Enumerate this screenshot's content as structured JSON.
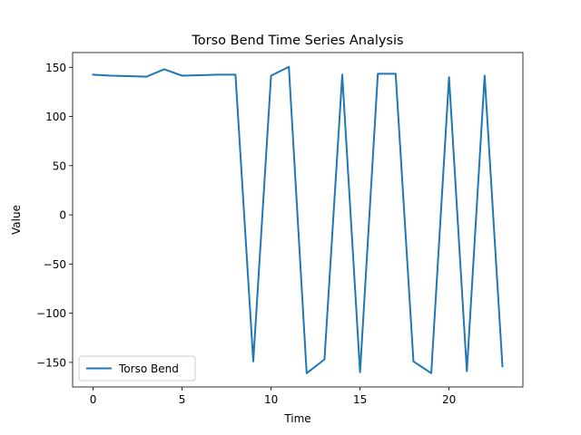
{
  "chart_data": {
    "type": "line",
    "title": "Torso Bend Time Series Analysis",
    "xlabel": "Time",
    "ylabel": "Value",
    "xlim": [
      -1.15,
      24.15
    ],
    "ylim": [
      -175,
      165
    ],
    "xticks": [
      0,
      5,
      10,
      15,
      20
    ],
    "yticks": [
      -150,
      -100,
      -50,
      0,
      50,
      100,
      150
    ],
    "ytick_labels": [
      "−150",
      "−100",
      "−50",
      "0",
      "50",
      "100",
      "150"
    ],
    "grid": false,
    "legend_position": "lower-left",
    "series": [
      {
        "name": "Torso Bend",
        "color": "#1f77b4",
        "x": [
          0,
          1,
          2,
          3,
          4,
          5,
          6,
          7,
          8,
          9,
          10,
          11,
          12,
          13,
          14,
          15,
          16,
          17,
          18,
          19,
          20,
          21,
          22,
          23
        ],
        "y": [
          142.5,
          141.5,
          141,
          140.5,
          148,
          141.5,
          142,
          142.5,
          142.5,
          -149,
          141.5,
          150.5,
          -161,
          -147,
          142.5,
          -160,
          143.5,
          143.5,
          -149,
          -161,
          140,
          -159,
          141.5,
          -154
        ]
      }
    ]
  }
}
